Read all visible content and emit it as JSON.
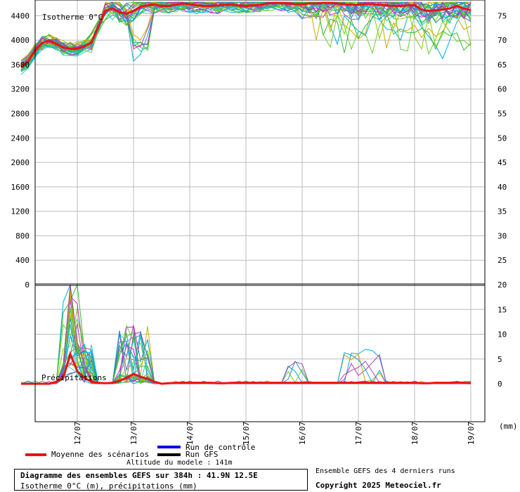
{
  "chart_data": {
    "type": "line",
    "title": "Diagramme des ensembles GEFS sur 384h : 41.9N 12.5E",
    "subtitle": "Isotherme 0°C (m), précipitations (mm)",
    "upper_panel": {
      "label": "Isotherme 0°C",
      "left_ticks": [
        "4400",
        "4000",
        "3600",
        "3200",
        "2800",
        "2400",
        "2000",
        "1600",
        "1200",
        "800",
        "400",
        "0"
      ],
      "right_ticks": [
        "75",
        "70",
        "65",
        "60",
        "55",
        "50",
        "45",
        "40",
        "35",
        "30",
        "25",
        "20"
      ],
      "ylim": [
        0,
        4600
      ],
      "mean_series": {
        "name": "Moyenne des scénarios",
        "x": [
          0,
          6,
          12,
          18,
          24,
          30,
          36,
          42,
          48,
          54,
          60,
          66,
          72,
          78,
          84,
          90,
          96,
          102,
          108,
          114,
          120,
          126,
          132,
          138,
          144,
          150,
          156,
          162,
          168,
          174,
          180,
          186,
          192,
          198,
          204,
          210,
          216,
          222,
          228,
          234,
          240,
          246,
          252,
          258,
          264,
          270,
          276,
          282,
          288,
          294,
          300,
          306,
          312,
          318,
          324,
          330,
          336,
          342,
          348,
          354,
          360,
          366,
          372,
          378,
          384
        ],
        "values": [
          3560,
          3650,
          3830,
          3960,
          3990,
          3940,
          3880,
          3860,
          3860,
          3900,
          3960,
          4220,
          4480,
          4520,
          4460,
          4430,
          4480,
          4550,
          4570,
          4580,
          4560,
          4560,
          4580,
          4600,
          4590,
          4570,
          4560,
          4560,
          4570,
          4580,
          4580,
          4570,
          4560,
          4570,
          4580,
          4600,
          4610,
          4610,
          4600,
          4590,
          4590,
          4600,
          4600,
          4610,
          4610,
          4600,
          4590,
          4580,
          4580,
          4590,
          4590,
          4580,
          4570,
          4560,
          4560,
          4570,
          4570,
          4500,
          4480,
          4490,
          4500,
          4520,
          4560,
          4520,
          4490
        ]
      }
    },
    "lower_panel": {
      "label": "Précipitations",
      "right_ticks": [
        "20",
        "15",
        "10",
        "5",
        "0"
      ],
      "ylim": [
        0,
        20
      ],
      "unit": "(mm)",
      "mean_series": {
        "name": "Moyenne des scénarios",
        "x": [
          0,
          6,
          12,
          18,
          24,
          30,
          36,
          42,
          48,
          54,
          60,
          66,
          72,
          78,
          84,
          90,
          96,
          102,
          108,
          114,
          120,
          126,
          132,
          138,
          144,
          150,
          156,
          162,
          168,
          174,
          180,
          186,
          192,
          198,
          204,
          210,
          216,
          222,
          228,
          234,
          240,
          246,
          252,
          258,
          264,
          270,
          276,
          282,
          288,
          294,
          300,
          306,
          312,
          318,
          324,
          330,
          336,
          342,
          348,
          354,
          360,
          366,
          372,
          378,
          384
        ],
        "values": [
          0,
          0,
          0,
          0,
          0,
          0.4,
          1.2,
          6.0,
          2.5,
          1.2,
          0.4,
          0.2,
          0.1,
          0.2,
          0.6,
          1.2,
          2.0,
          1.4,
          1.0,
          0.4,
          0,
          0.1,
          0.2,
          0.2,
          0.2,
          0.2,
          0.2,
          0.2,
          0.1,
          0.1,
          0.2,
          0.2,
          0.2,
          0.2,
          0.2,
          0.2,
          0.2,
          0.2,
          0.2,
          0.2,
          0.2,
          0.2,
          0.2,
          0.2,
          0.2,
          0.2,
          0.2,
          0.2,
          0.2,
          0.2,
          0.2,
          0.2,
          0.2,
          0.2,
          0.2,
          0.2,
          0.2,
          0.1,
          0.1,
          0.2,
          0.2,
          0.2,
          0.3,
          0.2,
          0.1
        ]
      }
    },
    "x_ticks": [
      {
        "label": "12/07",
        "x": 48
      },
      {
        "label": "13/07",
        "x": 96
      },
      {
        "label": "14/07",
        "x": 144
      },
      {
        "label": "15/07",
        "x": 192
      },
      {
        "label": "16/07",
        "x": 240
      },
      {
        "label": "17/07",
        "x": 288
      },
      {
        "label": "18/07",
        "x": 336
      },
      {
        "label": "19/07",
        "x": 384
      }
    ],
    "xlim": [
      12,
      396
    ],
    "grid": true,
    "legend": {
      "mean": "Moyenne des scénarios",
      "control": "Run de contrôle",
      "gfs": "Run GFS"
    }
  },
  "footer": {
    "altitude": "Altitude du modele : 141m",
    "runs_note": "Ensemble GEFS des 4 derniers runs",
    "copyright": "Copyright 2025 Meteociel.fr"
  },
  "colors": {
    "mean": "#ee1111",
    "control": "#0000ee",
    "gfs": "#000000",
    "grid": "#bbbbbb",
    "ensemble": [
      "#00aadd",
      "#33bb33",
      "#cc22cc",
      "#ccaa00",
      "#22cccc",
      "#88cc00",
      "#aa44aa",
      "#66cc33",
      "#1199bb"
    ]
  }
}
